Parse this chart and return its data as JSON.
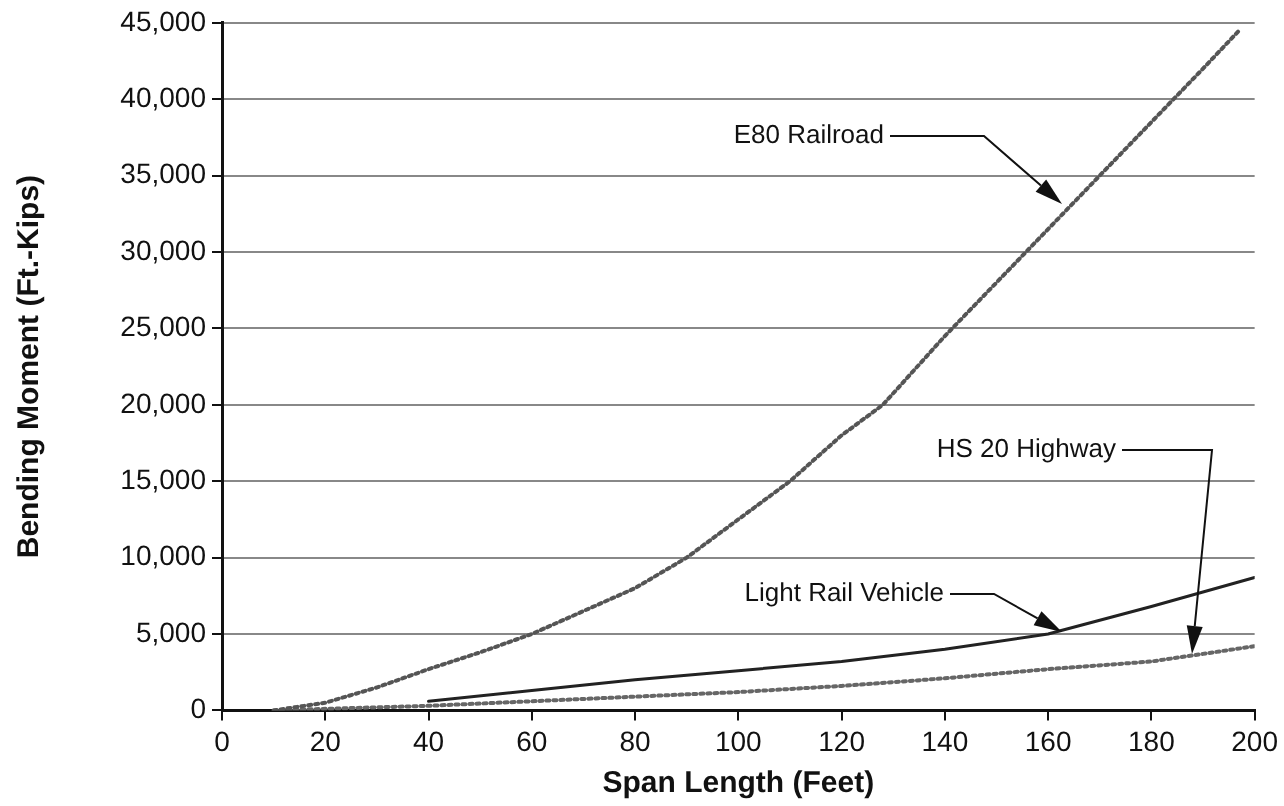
{
  "chart_data": {
    "type": "line",
    "xlabel": "Span Length (Feet)",
    "ylabel": "Bending Moment (Ft.-Kips)",
    "xlim": [
      0,
      200
    ],
    "xticks": [
      0,
      20,
      40,
      60,
      80,
      100,
      120,
      140,
      160,
      180,
      200
    ],
    "ylim": [
      0,
      45000
    ],
    "yticks": [
      {
        "value": 0,
        "label": "0"
      },
      {
        "value": 5000,
        "label": "5,000"
      },
      {
        "value": 10000,
        "label": "10,000"
      },
      {
        "value": 15000,
        "label": "15,000"
      },
      {
        "value": 20000,
        "label": "20,000"
      },
      {
        "value": 25000,
        "label": "25,000"
      },
      {
        "value": 30000,
        "label": "30,000"
      },
      {
        "value": 35000,
        "label": "35,000"
      },
      {
        "value": 40000,
        "label": "40,000"
      },
      {
        "value": 45000,
        "label": "45,000"
      }
    ],
    "grid": "y",
    "legend": false,
    "marker": "none",
    "series": [
      {
        "color": "#555555",
        "line_style": "dotted",
        "x": [
          10,
          20,
          30,
          40,
          50,
          60,
          70,
          80,
          90,
          100,
          110,
          120,
          128,
          140,
          150,
          160,
          170,
          180,
          190,
          197
        ],
        "values": [
          0,
          500,
          1500,
          2700,
          3800,
          5000,
          6500,
          8000,
          10000,
          12500,
          15000,
          18000,
          20000,
          24500,
          28000,
          31500,
          35000,
          38500,
          42000,
          44500
        ]
      },
      {
        "color": "#222222",
        "line_style": "solid",
        "x": [
          40,
          60,
          80,
          100,
          120,
          140,
          160,
          180,
          200
        ],
        "values": [
          600,
          1300,
          2000,
          2600,
          3200,
          4000,
          5000,
          6800,
          8700
        ]
      },
      {
        "color": "#666666",
        "line_style": "dotted",
        "x": [
          10,
          20,
          40,
          60,
          80,
          100,
          120,
          140,
          160,
          180,
          190,
          200
        ],
        "values": [
          0,
          100,
          300,
          600,
          900,
          1200,
          1600,
          2100,
          2700,
          3200,
          3700,
          4200
        ]
      }
    ],
    "annotations": [
      "E80 Railroad",
      "Light Rail Vehicle",
      "HS 20 Highway"
    ]
  }
}
